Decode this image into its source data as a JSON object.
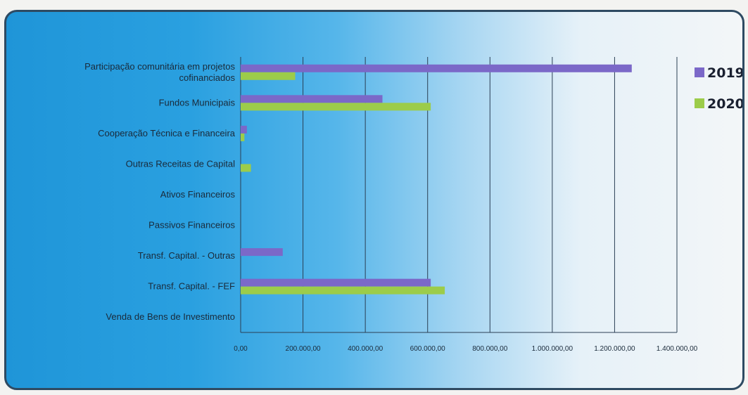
{
  "chart_data": {
    "type": "bar",
    "orientation": "horizontal",
    "categories": [
      "Participação comunitária em projetos cofinanciados",
      "Fundos Municipais",
      "Cooperação Técnica e Financeira",
      "Outras Receitas de Capital",
      "Ativos Financeiros",
      "Passivos Financeiros",
      "Transf. Capital.  - Outras",
      "Transf. Capital. - FEF",
      "Venda de Bens de Investimento"
    ],
    "category_lines": [
      [
        "Participação comunitária em projetos",
        "cofinanciados"
      ],
      [
        "Fundos Municipais"
      ],
      [
        "Cooperação Técnica e Financeira"
      ],
      [
        "Outras Receitas de Capital"
      ],
      [
        "Ativos Financeiros"
      ],
      [
        "Passivos Financeiros"
      ],
      [
        "Transf. Capital.  - Outras"
      ],
      [
        "Transf. Capital. - FEF"
      ],
      [
        "Venda de Bens de Investimento"
      ]
    ],
    "series": [
      {
        "name": "2019",
        "color": "#7b68c8",
        "values": [
          1255000,
          455000,
          20000,
          0,
          0,
          0,
          135000,
          610000,
          0
        ]
      },
      {
        "name": "2020",
        "color": "#9ccc4a",
        "values": [
          175000,
          610000,
          12000,
          33000,
          0,
          0,
          0,
          655000,
          0
        ]
      }
    ],
    "xlim": [
      0,
      1400000
    ],
    "xticks": [
      0,
      200000,
      400000,
      600000,
      800000,
      1000000,
      1200000,
      1400000
    ],
    "xtick_labels": [
      "0,00",
      "200.000,00",
      "400.000,00",
      "600.000,00",
      "800.000,00",
      "1.000.000,00",
      "1.200.000,00",
      "1.400.000,00"
    ],
    "grid": true,
    "legend_position": "right"
  }
}
